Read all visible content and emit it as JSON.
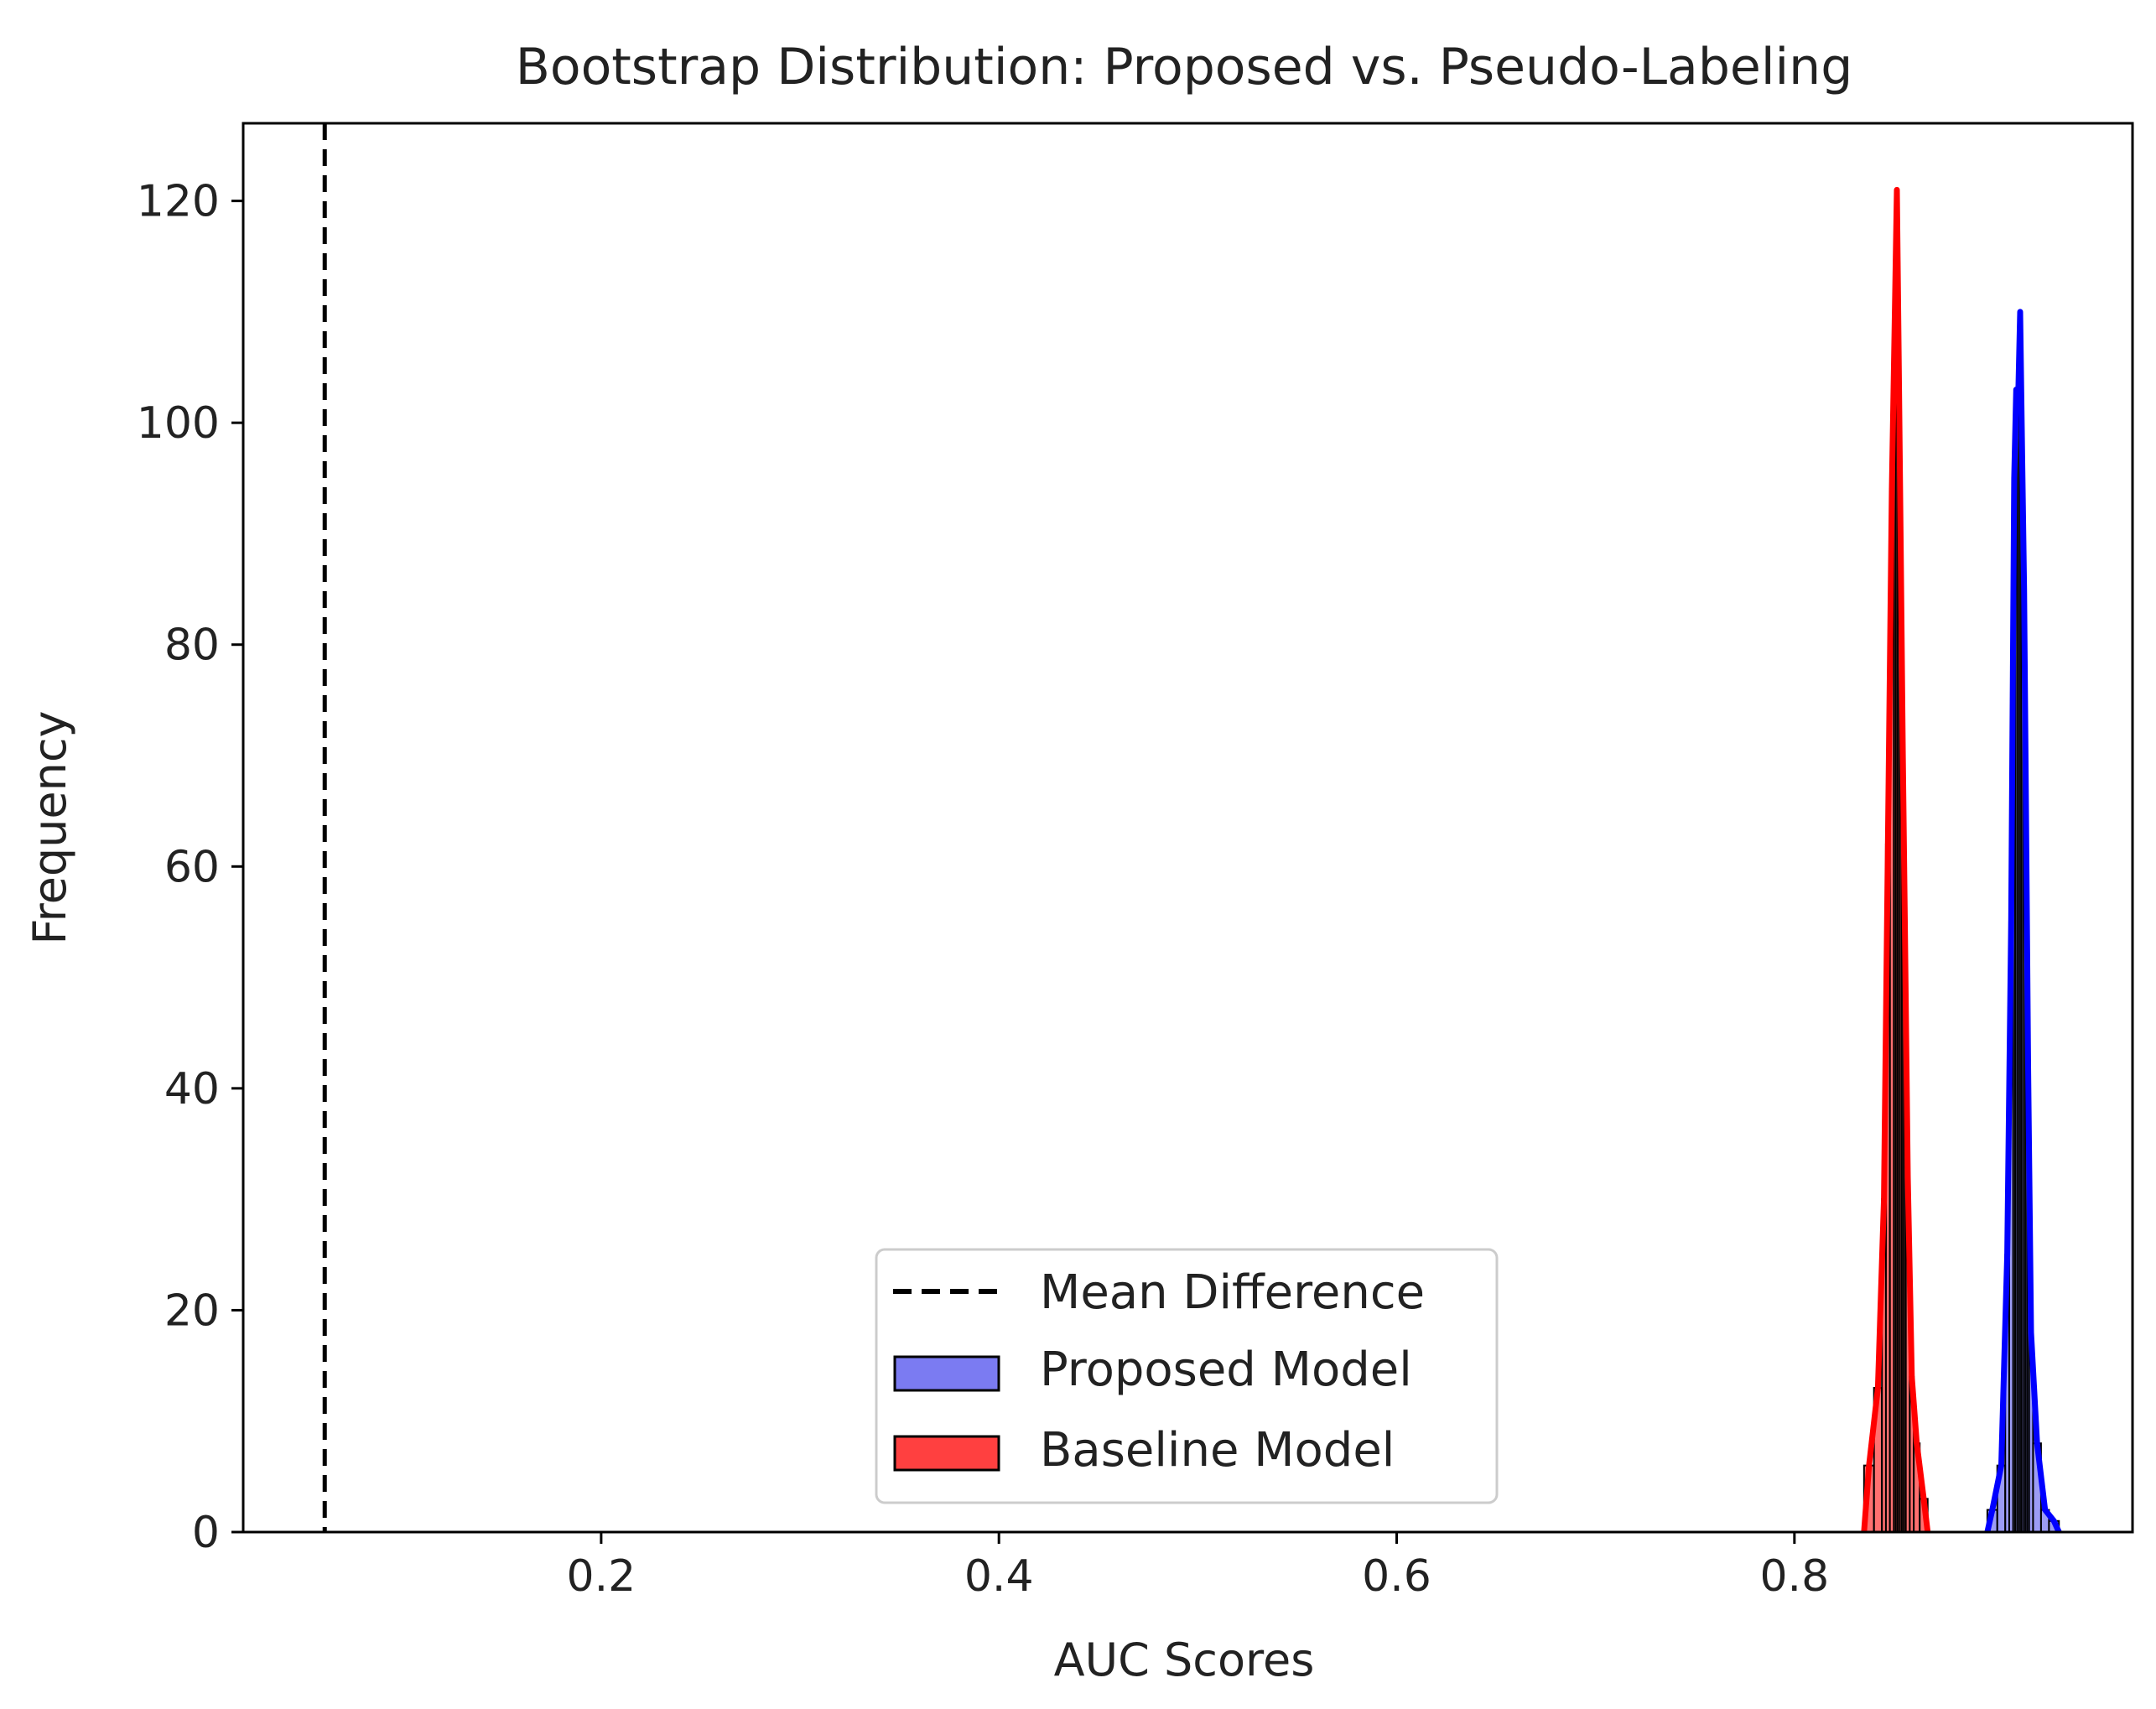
{
  "chart_data": {
    "type": "histogram",
    "title": "Bootstrap Distribution: Proposed vs. Pseudo-Labeling",
    "xlabel": "AUC Scores",
    "ylabel": "Frequency",
    "xlim": [
      0.02,
      0.97
    ],
    "ylim": [
      0,
      127
    ],
    "x_ticks": [
      0.2,
      0.4,
      0.6,
      0.8
    ],
    "x_tick_labels": [
      "0.2",
      "0.4",
      "0.6",
      "0.8"
    ],
    "y_ticks": [
      0,
      20,
      40,
      60,
      80,
      100,
      120
    ],
    "y_tick_labels": [
      "0",
      "20",
      "40",
      "60",
      "80",
      "100",
      "120"
    ],
    "grid": false,
    "legend_position": "lower-center",
    "reference_lines": [
      {
        "name": "Mean Difference",
        "x": 0.061,
        "style": "dashed",
        "color": "#000000"
      }
    ],
    "series": [
      {
        "name": "Proposed Model",
        "color": "#0000ff",
        "fill_color": "#7b7bf2",
        "bin_edges": [
          0.897,
          0.902,
          0.906,
          0.908,
          0.91,
          0.911,
          0.912,
          0.913,
          0.914,
          0.915,
          0.916,
          0.917,
          0.918,
          0.92,
          0.924,
          0.928,
          0.933
        ],
        "counts": [
          2,
          6,
          25,
          55,
          95,
          103,
          102,
          110,
          97,
          85,
          64,
          42,
          18,
          8,
          2,
          1
        ]
      },
      {
        "name": "Baseline Model",
        "color": "#ff0000",
        "fill_color": "#ff4040",
        "bin_edges": [
          0.835,
          0.84,
          0.844,
          0.846,
          0.848,
          0.85,
          0.851,
          0.852,
          0.853,
          0.854,
          0.855,
          0.856,
          0.858,
          0.86,
          0.863,
          0.867
        ],
        "counts": [
          6,
          13,
          30,
          62,
          94,
          110,
          121,
          105,
          88,
          70,
          55,
          32,
          14,
          8,
          3
        ]
      }
    ],
    "legend": [
      {
        "label": "Mean Difference",
        "kind": "dashed-line"
      },
      {
        "label": "Proposed Model",
        "kind": "patch",
        "series": 0
      },
      {
        "label": "Baseline Model",
        "kind": "patch",
        "series": 1
      }
    ]
  }
}
